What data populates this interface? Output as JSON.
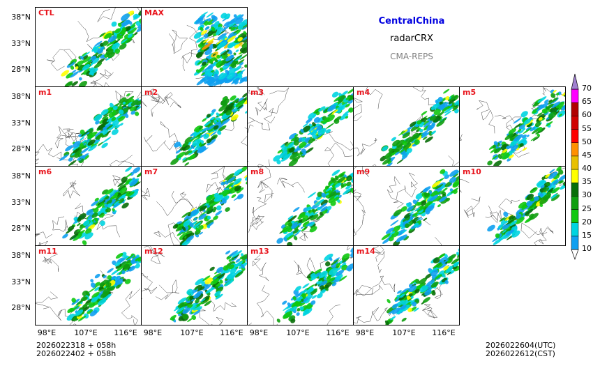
{
  "titles": {
    "region": "CentralChina",
    "product": "radarCRX",
    "model": "CMA-REPS",
    "region_color": "#0000e0",
    "model_color": "#808080"
  },
  "chart_data": {
    "type": "heatmap",
    "description_values": "composite radar reflectivity (dBZ) ensemble postage stamps",
    "panels": [
      "CTL",
      "MAX",
      "m1",
      "m2",
      "m3",
      "m4",
      "m5",
      "m6",
      "m7",
      "m8",
      "m9",
      "m10",
      "m11",
      "m12",
      "m13",
      "m14"
    ],
    "y_ticks": [
      "38°N",
      "33°N",
      "28°N"
    ],
    "x_ticks": [
      "98°E",
      "107°E",
      "116°E"
    ],
    "colorbar": {
      "levels": [
        "10",
        "15",
        "20",
        "25",
        "30",
        "35",
        "40",
        "45",
        "50",
        "55",
        "60",
        "65",
        "70"
      ],
      "colors": [
        "#10a0f0",
        "#00d4e0",
        "#10c810",
        "#0f9f0f",
        "#086e08",
        "#ffff00",
        "#e8c000",
        "#ff9000",
        "#ff0000",
        "#d00000",
        "#b00000",
        "#ff00ff",
        "#9900cc",
        "#a080d0"
      ]
    }
  },
  "footer": {
    "init_line1": "2026022318  +  058h",
    "init_line2": "2026022402  +  058h",
    "valid_utc": "2026022604(UTC)",
    "valid_cst": "2026022612(CST)"
  }
}
